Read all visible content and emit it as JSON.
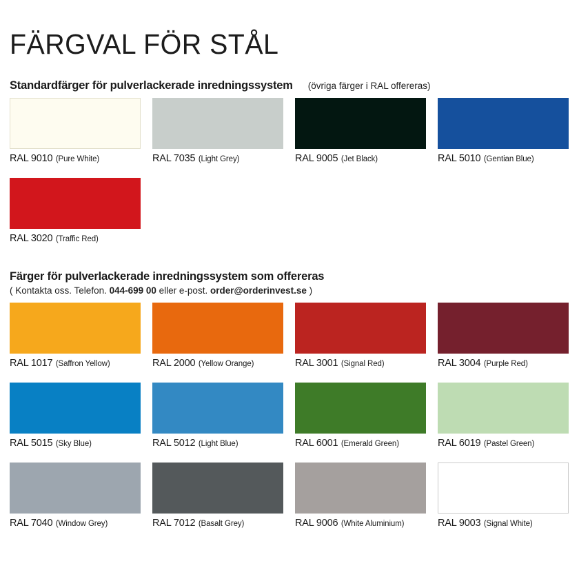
{
  "page": {
    "title": "FÄRGVAL FÖR STÅL"
  },
  "standard_section": {
    "heading": "Standardfärger för pulverlackerade inredningssystem",
    "note": "(övriga färger i RAL offereras)",
    "swatches": [
      {
        "code": "RAL 9010",
        "name": "(Pure White)",
        "color": "#FEFCF0",
        "border_color": "#E2DFCB"
      },
      {
        "code": "RAL 7035",
        "name": "(Light Grey)",
        "color": "#C8CECB"
      },
      {
        "code": "RAL 9005",
        "name": "(Jet Black)",
        "color": "#031711"
      },
      {
        "code": "RAL 5010",
        "name": "(Gentian Blue)",
        "color": "#15509D"
      },
      {
        "code": "RAL 3020",
        "name": "(Traffic Red)",
        "color": "#D2161C"
      }
    ]
  },
  "offered_section": {
    "heading": "Färger för pulverlackerade inredningssystem som offereras",
    "contact_prefix": "( Kontakta oss. Telefon. ",
    "contact_phone": "044-699 00",
    "contact_middle": " eller e-post. ",
    "contact_email": "order@orderinvest.se",
    "contact_suffix": " )",
    "swatches": [
      {
        "code": "RAL 1017",
        "name": "(Saffron Yellow)",
        "color": "#F6A81C"
      },
      {
        "code": "RAL 2000",
        "name": "(Yellow Orange)",
        "color": "#E8690E"
      },
      {
        "code": "RAL 3001",
        "name": "(Signal Red)",
        "color": "#BB2420"
      },
      {
        "code": "RAL 3004",
        "name": "(Purple Red)",
        "color": "#75202D"
      },
      {
        "code": "RAL 5015",
        "name": "(Sky Blue)",
        "color": "#0880C4"
      },
      {
        "code": "RAL 5012",
        "name": "(Light Blue)",
        "color": "#3389C3"
      },
      {
        "code": "RAL 6001",
        "name": "(Emerald Green)",
        "color": "#3E7B28"
      },
      {
        "code": "RAL 6019",
        "name": "(Pastel Green)",
        "color": "#BEDCB3"
      },
      {
        "code": "RAL 7040",
        "name": "(Window Grey)",
        "color": "#9DA6AF"
      },
      {
        "code": "RAL 7012",
        "name": "(Basalt Grey)",
        "color": "#54595B"
      },
      {
        "code": "RAL 9006",
        "name": "(White Aluminium)",
        "color": "#A5A09E"
      },
      {
        "code": "RAL 9003",
        "name": "(Signal White)",
        "color": "#FFFFFF",
        "border_color": "#C9C9C9"
      }
    ]
  }
}
